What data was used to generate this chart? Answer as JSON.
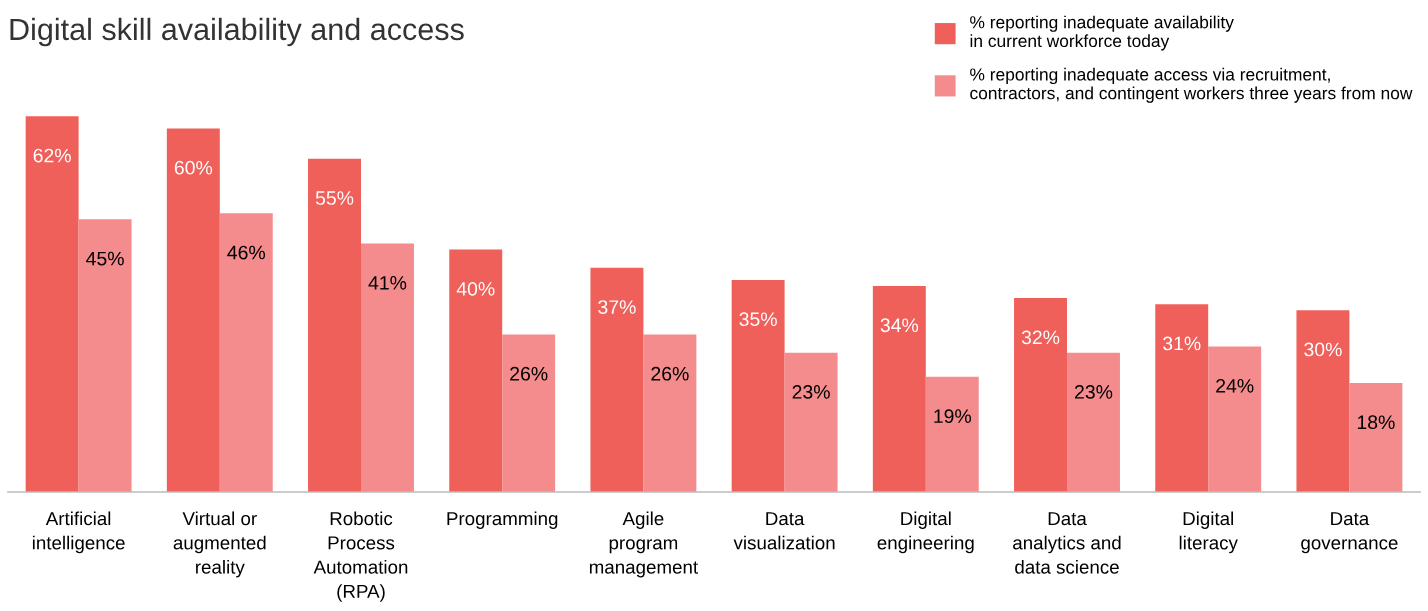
{
  "chart_data": {
    "type": "bar",
    "title": "Digital skill availability and access",
    "categories": [
      "Artificial\nintelligence",
      "Virtual or\naugmented\nreality",
      "Robotic\nProcess\nAutomation\n(RPA)",
      "Programming",
      "Agile\nprogram\nmanagement",
      "Data\nvisualization",
      "Digital\nengineering",
      "Data\nanalytics and\ndata science",
      "Digital\nliteracy",
      "Data\ngovernance"
    ],
    "series": [
      {
        "name": "% reporting inadequate availability\nin current workforce today",
        "color": "#f0605a",
        "values": [
          62,
          60,
          55,
          40,
          37,
          35,
          34,
          32,
          31,
          30
        ],
        "value_labels": [
          "62%",
          "60%",
          "55%",
          "40%",
          "37%",
          "35%",
          "34%",
          "32%",
          "31%",
          "30%"
        ]
      },
      {
        "name": "% reporting inadequate access via recruitment,\ncontractors, and contingent workers three years from now",
        "color": "#f48b8c",
        "values": [
          45,
          46,
          41,
          26,
          26,
          23,
          19,
          23,
          24,
          18
        ],
        "value_labels": [
          "45%",
          "46%",
          "41%",
          "26%",
          "26%",
          "23%",
          "19%",
          "23%",
          "24%",
          "18%"
        ]
      }
    ],
    "legend": "top right",
    "grid": false
  }
}
